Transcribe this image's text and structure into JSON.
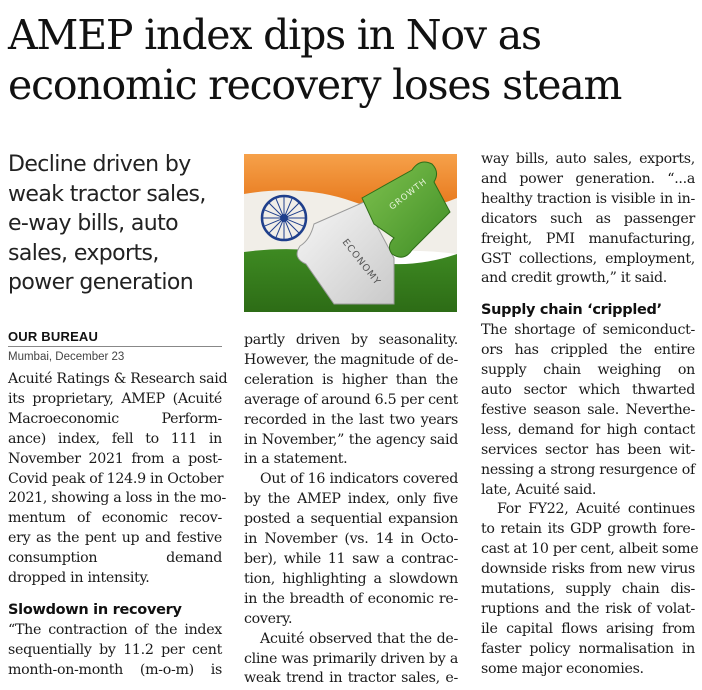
{
  "headline": {
    "lines": [
      "AMEP index dips in Nov as",
      "economic recovery loses steam"
    ]
  },
  "deck": {
    "lines": [
      "Decline driven by",
      "weak tractor sales,",
      "e-way bills, auto",
      "sales, exports,",
      "power generation"
    ]
  },
  "byline": "OUR BUREAU",
  "dateline": "Mumbai, December 23",
  "photo": {
    "piece_labels": [
      "ECONOMY",
      "GROWTH"
    ],
    "colors": {
      "saffron": "#f08a24",
      "white": "#f4f2ee",
      "green": "#4f9a2c",
      "chakra": "#1f3f8c",
      "puzzle_white": "#e9e9e9",
      "puzzle_green": "#5aa83a"
    }
  },
  "col1": [
    {
      "t": "Acuité Ratings & Research said",
      "j": true
    },
    {
      "t": "its proprietary, AMEP (Acuité",
      "j": true
    },
    {
      "t": "Macroeconomic Perform-",
      "j": true
    },
    {
      "t": "ance) index, fell to 111 in",
      "j": true
    },
    {
      "t": "November 2021 from a post-",
      "j": true
    },
    {
      "t": "Covid peak of 124.9 in October",
      "j": true
    },
    {
      "t": "2021, showing a loss in the mo-",
      "j": true
    },
    {
      "t": "mentum of economic recov-",
      "j": true
    },
    {
      "t": "ery as the pent up and festive",
      "j": true
    },
    {
      "t": "consumption demand",
      "j": true
    },
    {
      "t": "dropped in intensity.",
      "j": false
    }
  ],
  "col1_sub": "Slowdown in recovery",
  "col1b": [
    {
      "t": "“The contraction of the index",
      "j": true
    },
    {
      "t": "sequentially by 11.2 per cent",
      "j": true
    },
    {
      "t": "month-on-month (m-o-m) is",
      "j": true
    }
  ],
  "col2": [
    {
      "t": "partly driven by seasonality.",
      "j": true
    },
    {
      "t": "However, the magnitude of de-",
      "j": true
    },
    {
      "t": "celeration is higher than the",
      "j": true
    },
    {
      "t": "average of around 6.5 per cent",
      "j": true
    },
    {
      "t": "recorded in the last two years",
      "j": true
    },
    {
      "t": "in November,” the agency said",
      "j": true
    },
    {
      "t": "in a statement.",
      "j": false
    }
  ],
  "col2b": [
    {
      "t": "Out of 16 indicators covered",
      "j": true,
      "ind": true
    },
    {
      "t": "by the AMEP index, only five",
      "j": true
    },
    {
      "t": "posted a sequential expansion",
      "j": true
    },
    {
      "t": "in November (vs. 14 in Octo-",
      "j": true
    },
    {
      "t": "ber), while 11 saw a contrac-",
      "j": true
    },
    {
      "t": "tion, highlighting a slowdown",
      "j": true
    },
    {
      "t": "in the breadth of economic re-",
      "j": true
    },
    {
      "t": "covery.",
      "j": false
    }
  ],
  "col2c": [
    {
      "t": "Acuité observed that the de-",
      "j": true,
      "ind": true
    },
    {
      "t": "cline was primarily driven by a",
      "j": true
    },
    {
      "t": "weak trend in tractor sales, e-",
      "j": true
    }
  ],
  "col3": [
    {
      "t": "way bills, auto sales, exports,",
      "j": true
    },
    {
      "t": "and power generation. “...a",
      "j": true
    },
    {
      "t": "healthy traction is visible in in-",
      "j": true
    },
    {
      "t": "dicators such as passenger",
      "j": true
    },
    {
      "t": "freight, PMI manufacturing,",
      "j": true
    },
    {
      "t": "GST collections, employment,",
      "j": true
    },
    {
      "t": "and credit growth,” it said.",
      "j": false
    }
  ],
  "col3_sub": "Supply chain ‘crippled’",
  "col3b": [
    {
      "t": "The shortage of semiconduct-",
      "j": true
    },
    {
      "t": "ors has crippled the entire",
      "j": true
    },
    {
      "t": "supply chain weighing on",
      "j": true
    },
    {
      "t": "auto sector which thwarted",
      "j": true
    },
    {
      "t": "festive season sale. Neverthe-",
      "j": true
    },
    {
      "t": "less, demand for high contact",
      "j": true
    },
    {
      "t": "services sector has been wit-",
      "j": true
    },
    {
      "t": "nessing a strong resurgence of",
      "j": true
    },
    {
      "t": "late, Acuité said.",
      "j": false
    }
  ],
  "col3c": [
    {
      "t": "For FY22, Acuité continues",
      "j": true,
      "ind": true
    },
    {
      "t": "to retain its GDP growth fore-",
      "j": true
    },
    {
      "t": "cast at 10 per cent, albeit some",
      "j": true
    },
    {
      "t": "downside risks from new virus",
      "j": true
    },
    {
      "t": "mutations, supply chain dis-",
      "j": true
    },
    {
      "t": "ruptions and the risk of volat-",
      "j": true
    },
    {
      "t": "ile capital flows arising from",
      "j": true
    },
    {
      "t": "faster policy normalisation in",
      "j": true
    },
    {
      "t": "some major economies.",
      "j": false
    }
  ]
}
